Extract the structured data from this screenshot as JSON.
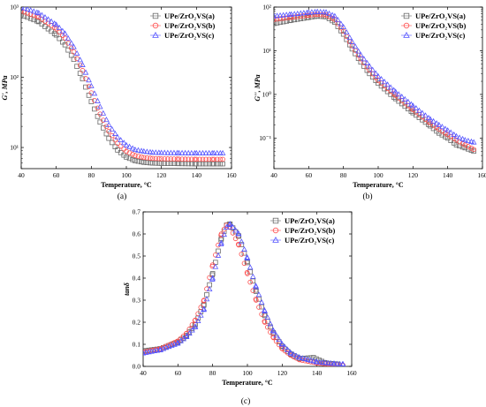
{
  "colors": {
    "a": "#6b6b6b",
    "b": "#ff4d4d",
    "c": "#5555ff"
  },
  "chart_data": [
    {
      "type": "scatter",
      "panel_label": "(a)",
      "xlabel": "Temperature, °C",
      "ylabel": "G', MPa",
      "xlim": [
        40,
        160
      ],
      "ylim": [
        5,
        1000
      ],
      "log_y": true,
      "xticks": [
        40,
        60,
        80,
        100,
        120,
        140,
        160
      ],
      "yticks": [
        {
          "v": 10,
          "label": "10¹"
        },
        {
          "v": 100,
          "label": "10²"
        },
        {
          "v": 1000,
          "label": "10³"
        }
      ],
      "legend_position": "top-right",
      "series": [
        {
          "name": "UPe/ZrO₂VS(a)",
          "marker": "square",
          "color_key": "a",
          "x": [
            40,
            50,
            60,
            65,
            70,
            75,
            80,
            85,
            90,
            95,
            100,
            105,
            110,
            115,
            120,
            130,
            140,
            150,
            155
          ],
          "y": [
            780,
            620,
            400,
            290,
            180,
            95,
            45,
            23,
            13.5,
            9.2,
            7.3,
            6.5,
            6.15,
            6.0,
            5.95,
            5.9,
            5.85,
            5.85,
            5.85
          ]
        },
        {
          "name": "UPe/ZrO₂VS(b)",
          "marker": "circle",
          "color_key": "b",
          "x": [
            40,
            50,
            60,
            65,
            70,
            75,
            80,
            85,
            90,
            95,
            100,
            105,
            110,
            115,
            120,
            130,
            140,
            150,
            155
          ],
          "y": [
            880,
            720,
            490,
            360,
            230,
            125,
            60,
            30,
            17,
            11.5,
            8.8,
            7.7,
            7.2,
            7.0,
            6.9,
            6.85,
            6.8,
            6.8,
            6.8
          ]
        },
        {
          "name": "UPe/ZrO₂VS(c)",
          "marker": "triangle",
          "color_key": "c",
          "x": [
            40,
            50,
            60,
            65,
            70,
            75,
            80,
            85,
            90,
            95,
            100,
            105,
            110,
            115,
            120,
            130,
            140,
            150,
            155
          ],
          "y": [
            1000,
            820,
            560,
            420,
            270,
            150,
            75,
            38,
            21,
            14,
            10.8,
            9.3,
            8.8,
            8.5,
            8.4,
            8.35,
            8.3,
            8.3,
            8.3
          ]
        }
      ]
    },
    {
      "type": "scatter",
      "panel_label": "(b)",
      "xlabel": "Temperature, °C",
      "ylabel": "G'', MPa",
      "xlim": [
        40,
        160
      ],
      "ylim": [
        0.02,
        100
      ],
      "log_y": true,
      "xticks": [
        40,
        60,
        80,
        100,
        120,
        140,
        160
      ],
      "yticks": [
        {
          "v": 0.1,
          "label": "10⁻¹"
        },
        {
          "v": 1,
          "label": "10⁰"
        },
        {
          "v": 10,
          "label": "10¹"
        },
        {
          "v": 100,
          "label": "10²"
        }
      ],
      "legend_position": "top-right",
      "series": [
        {
          "name": "UPe/ZrO₂VS(a)",
          "marker": "square",
          "color_key": "a",
          "x": [
            40,
            50,
            60,
            65,
            70,
            75,
            80,
            85,
            90,
            95,
            100,
            110,
            120,
            130,
            135,
            140,
            145,
            150,
            155
          ],
          "y": [
            42,
            50,
            58,
            62,
            60,
            45,
            24,
            11,
            5.5,
            3.0,
            1.8,
            0.8,
            0.38,
            0.19,
            0.13,
            0.1,
            0.07,
            0.06,
            0.05
          ]
        },
        {
          "name": "UPe/ZrO₂VS(b)",
          "marker": "circle",
          "color_key": "b",
          "x": [
            40,
            50,
            60,
            65,
            70,
            75,
            80,
            85,
            90,
            95,
            100,
            110,
            120,
            130,
            135,
            140,
            145,
            150,
            155
          ],
          "y": [
            52,
            58,
            65,
            68,
            66,
            52,
            28,
            13,
            6.5,
            3.6,
            2.1,
            0.95,
            0.45,
            0.22,
            0.16,
            0.12,
            0.09,
            0.07,
            0.055
          ]
        },
        {
          "name": "UPe/ZrO₂VS(c)",
          "marker": "triangle",
          "color_key": "c",
          "x": [
            40,
            50,
            60,
            65,
            70,
            75,
            80,
            85,
            90,
            95,
            100,
            110,
            120,
            130,
            135,
            140,
            145,
            150,
            155
          ],
          "y": [
            62,
            68,
            75,
            78,
            76,
            62,
            35,
            16,
            8.0,
            4.4,
            2.6,
            1.15,
            0.55,
            0.27,
            0.2,
            0.15,
            0.11,
            0.09,
            0.08
          ]
        }
      ]
    },
    {
      "type": "scatter",
      "panel_label": "(c)",
      "xlabel": "Temperature, °C",
      "ylabel": "tanδ",
      "xlim": [
        40,
        160
      ],
      "ylim": [
        0,
        0.7
      ],
      "log_y": false,
      "xticks": [
        40,
        60,
        80,
        100,
        120,
        140,
        160
      ],
      "yticks": [
        {
          "v": 0.0,
          "label": "0.0"
        },
        {
          "v": 0.1,
          "label": "0.1"
        },
        {
          "v": 0.2,
          "label": "0.2"
        },
        {
          "v": 0.3,
          "label": "0.3"
        },
        {
          "v": 0.4,
          "label": "0.4"
        },
        {
          "v": 0.5,
          "label": "0.5"
        },
        {
          "v": 0.6,
          "label": "0.6"
        },
        {
          "v": 0.7,
          "label": "0.7"
        }
      ],
      "legend_position": "top-right",
      "series": [
        {
          "name": "UPe/ZrO₂VS(a)",
          "marker": "square",
          "color_key": "a",
          "x": [
            40,
            50,
            60,
            65,
            70,
            75,
            80,
            85,
            88,
            90,
            95,
            100,
            105,
            110,
            115,
            120,
            125,
            130,
            138,
            145,
            152
          ],
          "y": [
            0.07,
            0.08,
            0.11,
            0.14,
            0.19,
            0.28,
            0.42,
            0.58,
            0.64,
            0.645,
            0.59,
            0.47,
            0.34,
            0.23,
            0.15,
            0.09,
            0.055,
            0.035,
            0.04,
            0.015,
            0.01
          ]
        },
        {
          "name": "UPe/ZrO₂VS(b)",
          "marker": "circle",
          "color_key": "b",
          "x": [
            40,
            50,
            60,
            65,
            70,
            75,
            80,
            85,
            88,
            90,
            95,
            100,
            105,
            110,
            115,
            120,
            125,
            130,
            140,
            150,
            155
          ],
          "y": [
            0.065,
            0.08,
            0.115,
            0.15,
            0.21,
            0.3,
            0.46,
            0.6,
            0.64,
            0.63,
            0.55,
            0.42,
            0.3,
            0.2,
            0.13,
            0.08,
            0.05,
            0.03,
            0.015,
            0.008,
            0.005
          ]
        },
        {
          "name": "UPe/ZrO₂VS(c)",
          "marker": "triangle",
          "color_key": "c",
          "x": [
            40,
            50,
            60,
            65,
            70,
            75,
            80,
            85,
            88,
            90,
            95,
            100,
            105,
            110,
            115,
            120,
            125,
            130,
            140,
            150,
            155
          ],
          "y": [
            0.06,
            0.075,
            0.105,
            0.135,
            0.18,
            0.26,
            0.4,
            0.56,
            0.63,
            0.645,
            0.6,
            0.49,
            0.36,
            0.25,
            0.16,
            0.1,
            0.06,
            0.04,
            0.02,
            0.012,
            0.01
          ]
        }
      ]
    }
  ]
}
